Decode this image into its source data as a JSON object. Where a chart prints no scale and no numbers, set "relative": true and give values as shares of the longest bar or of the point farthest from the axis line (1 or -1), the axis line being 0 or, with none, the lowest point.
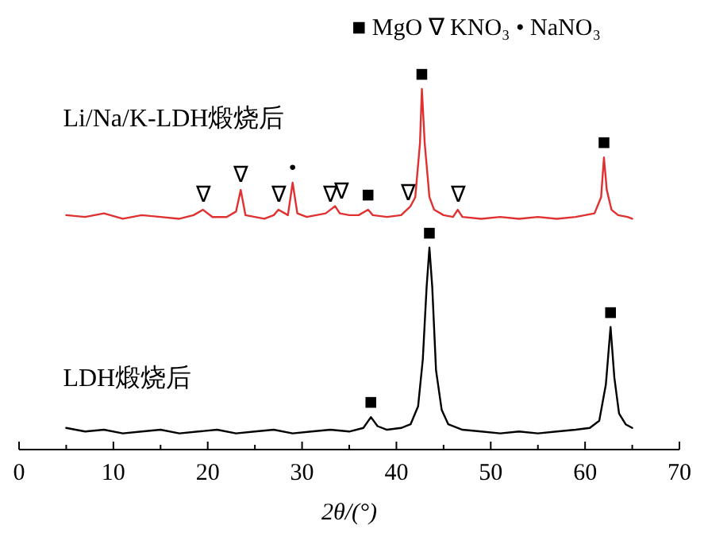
{
  "chart_data": {
    "type": "line",
    "relative": true,
    "xlabel": "2θ/(°)",
    "xlim": [
      0,
      70
    ],
    "xticks": [
      0,
      {
        "value": 5,
        "label": null
      },
      10,
      {
        "value": 15,
        "label": null
      },
      20,
      {
        "value": 25,
        "label": null
      },
      30,
      {
        "value": 35,
        "label": null
      },
      40,
      {
        "value": 45,
        "label": null
      },
      50,
      {
        "value": 55,
        "label": null
      },
      60,
      {
        "value": 65,
        "label": null
      },
      70
    ],
    "tick_labels": "x",
    "grid": false,
    "series": [
      {
        "name": "Li/Na/K-LDH煅烧后",
        "color": "#e03030",
        "x": [
          5,
          7,
          9,
          11,
          13,
          15,
          17,
          18.5,
          19.5,
          20.5,
          22,
          23,
          23.5,
          24,
          25,
          26,
          27,
          27.5,
          28.5,
          29,
          29.5,
          30.5,
          31.5,
          32.5,
          33,
          33.5,
          34,
          35,
          36,
          37,
          37.5,
          39,
          40.5,
          41.5,
          42,
          42.5,
          42.7,
          43,
          43.5,
          44,
          45,
          46,
          46.5,
          47,
          49,
          51,
          53,
          55,
          57,
          59,
          61,
          61.7,
          62,
          62.3,
          62.8,
          63.5,
          64.5,
          65
        ],
        "values": [
          0.65,
          0.645,
          0.655,
          0.64,
          0.65,
          0.645,
          0.64,
          0.65,
          0.665,
          0.645,
          0.645,
          0.66,
          0.72,
          0.65,
          0.645,
          0.64,
          0.65,
          0.665,
          0.65,
          0.74,
          0.655,
          0.645,
          0.65,
          0.655,
          0.665,
          0.675,
          0.655,
          0.65,
          0.65,
          0.665,
          0.65,
          0.645,
          0.65,
          0.675,
          0.7,
          0.85,
          1.0,
          0.85,
          0.7,
          0.665,
          0.65,
          0.645,
          0.665,
          0.645,
          0.64,
          0.645,
          0.64,
          0.645,
          0.64,
          0.645,
          0.655,
          0.7,
          0.81,
          0.72,
          0.665,
          0.65,
          0.645,
          0.64
        ]
      },
      {
        "name": "LDH煅烧后",
        "color": "#000000",
        "x": [
          5,
          7,
          9,
          11,
          13,
          15,
          17,
          19,
          21,
          23,
          25,
          27,
          29,
          31,
          33,
          35,
          36.5,
          37.3,
          38,
          39,
          40.5,
          41.5,
          42.3,
          42.8,
          43.2,
          43.5,
          43.8,
          44.2,
          44.8,
          45.5,
          47,
          49,
          51,
          53,
          55,
          57,
          59,
          60.5,
          61.5,
          62.2,
          62.7,
          63.1,
          63.6,
          64.3,
          65
        ],
        "values": [
          0.06,
          0.05,
          0.055,
          0.045,
          0.05,
          0.055,
          0.045,
          0.05,
          0.055,
          0.045,
          0.05,
          0.055,
          0.045,
          0.05,
          0.055,
          0.05,
          0.06,
          0.09,
          0.065,
          0.055,
          0.06,
          0.07,
          0.12,
          0.25,
          0.45,
          0.56,
          0.45,
          0.22,
          0.11,
          0.07,
          0.055,
          0.05,
          0.045,
          0.05,
          0.045,
          0.05,
          0.055,
          0.06,
          0.08,
          0.18,
          0.34,
          0.2,
          0.1,
          0.07,
          0.06
        ]
      }
    ],
    "annotations": [
      "■ MgO  ∇ KNO₃  • NaNO₃",
      {
        "text": "∇",
        "x": 19.5,
        "y": 0.665
      },
      {
        "text": "∇",
        "x": 23.5,
        "y": 0.72
      },
      {
        "text": "∇",
        "x": 27.5,
        "y": 0.665
      },
      {
        "text": "•",
        "x": 29,
        "y": 0.74
      },
      {
        "text": "∇",
        "x": 33,
        "y": 0.665
      },
      {
        "text": "∇",
        "x": 34.2,
        "y": 0.675
      },
      {
        "text": "■",
        "x": 37,
        "y": 0.665
      },
      {
        "text": "∇",
        "x": 41.2,
        "y": 0.67
      },
      {
        "text": "■",
        "x": 42.7,
        "y": 1.0
      },
      {
        "text": "∇",
        "x": 46.5,
        "y": 0.665
      },
      {
        "text": "■",
        "x": 62,
        "y": 0.81
      },
      {
        "text": "■",
        "x": 37.3,
        "y": 0.09
      },
      {
        "text": "■",
        "x": 43.5,
        "y": 0.56
      },
      {
        "text": "■",
        "x": 62.7,
        "y": 0.34
      }
    ]
  }
}
